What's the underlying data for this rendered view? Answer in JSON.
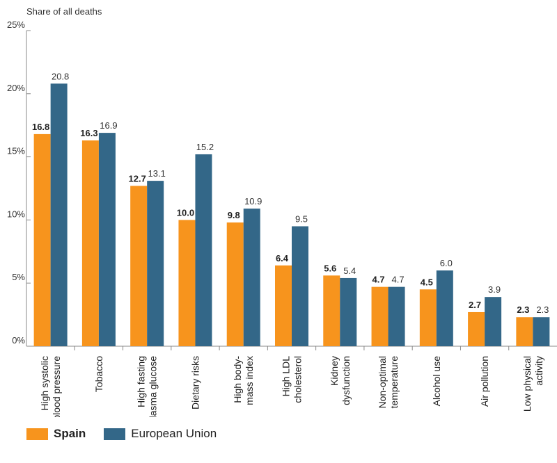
{
  "chart_data": {
    "type": "bar",
    "ylabel": "Share of all deaths",
    "ylim": [
      0,
      25
    ],
    "yticks": [
      "0%",
      "5%",
      "10%",
      "15%",
      "20%",
      "25%"
    ],
    "grid": false,
    "legend_position": "bottom-left",
    "categories": [
      [
        "High systolic",
        "blood pressure"
      ],
      [
        "Tobacco"
      ],
      [
        "High fasting",
        "plasma glucose"
      ],
      [
        "Dietary risks"
      ],
      [
        "High body-",
        "mass index"
      ],
      [
        "High LDL",
        "cholesterol"
      ],
      [
        "Kidney",
        "dysfunction"
      ],
      [
        "Non-optimal",
        "temperature"
      ],
      [
        "Alcohol use"
      ],
      [
        "Air pollution"
      ],
      [
        "Low physical",
        "activity"
      ]
    ],
    "series": [
      {
        "name": "Spain",
        "color": "#f7941d",
        "values": [
          16.8,
          16.3,
          12.7,
          10.0,
          9.8,
          6.4,
          5.6,
          4.7,
          4.5,
          2.7,
          2.3
        ],
        "labels": [
          "16.8",
          "16.3",
          "12.7",
          "10.0",
          "9.8",
          "6.4",
          "5.6",
          "4.7",
          "4.5",
          "2.7",
          "2.3"
        ]
      },
      {
        "name": "European Union",
        "color": "#336788",
        "values": [
          20.8,
          16.9,
          13.1,
          15.2,
          10.9,
          9.5,
          5.4,
          4.7,
          6.0,
          3.9,
          2.3
        ],
        "labels": [
          "20.8",
          "16.9",
          "13.1",
          "15.2",
          "10.9",
          "9.5",
          "5.4",
          "4.7",
          "6.0",
          "3.9",
          "2.3"
        ]
      }
    ]
  }
}
